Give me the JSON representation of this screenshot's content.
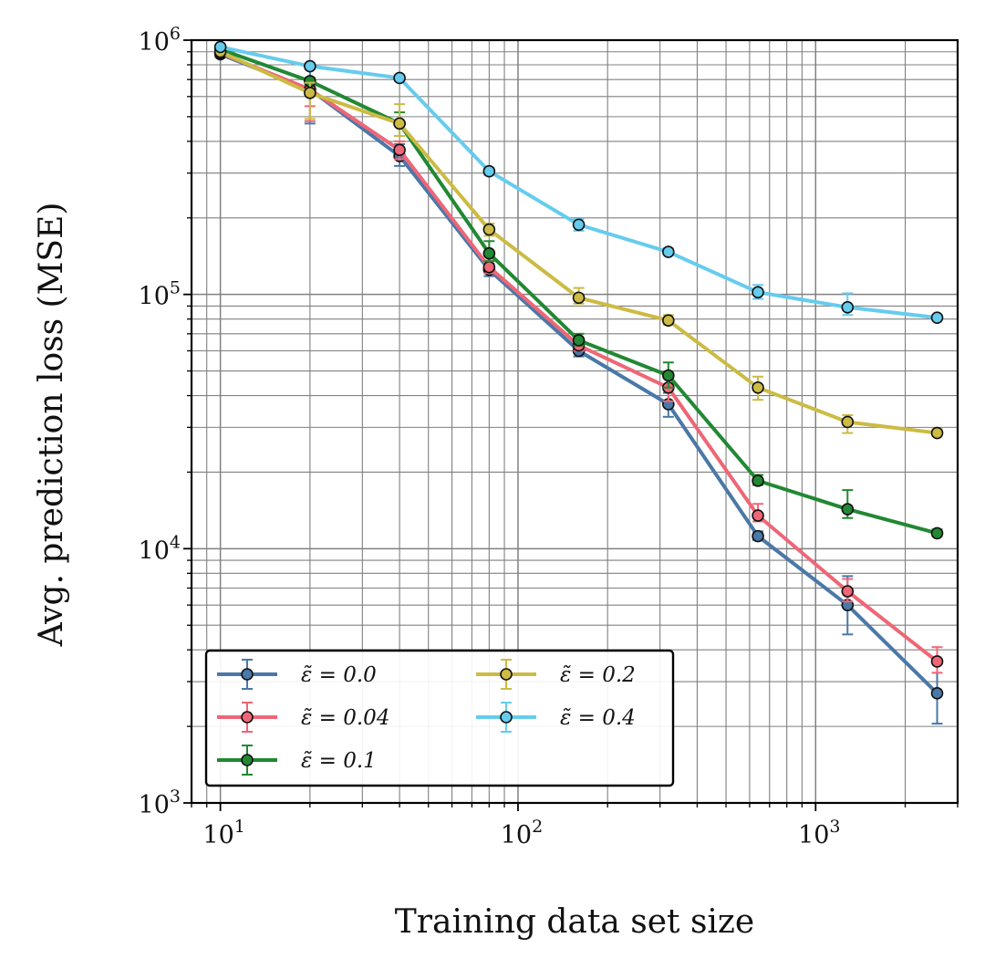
{
  "chart_data": {
    "type": "line",
    "title": "",
    "xlabel": "Training data set size",
    "ylabel": "Avg. prediction loss (MSE)",
    "xscale": "log",
    "yscale": "log",
    "xlim": [
      8,
      3000
    ],
    "ylim": [
      1000,
      1000000
    ],
    "grid": true,
    "legend_position": "bottom-left",
    "x_ticks": [
      {
        "value": 10,
        "base": "10",
        "exp": "1"
      },
      {
        "value": 100,
        "base": "10",
        "exp": "2"
      },
      {
        "value": 1000,
        "base": "10",
        "exp": "3"
      }
    ],
    "y_ticks": [
      {
        "value": 1000,
        "base": "10",
        "exp": "3"
      },
      {
        "value": 10000,
        "base": "10",
        "exp": "4"
      },
      {
        "value": 100000,
        "base": "10",
        "exp": "5"
      },
      {
        "value": 1000000,
        "base": "10",
        "exp": "6"
      }
    ],
    "x": [
      10,
      20,
      40,
      80,
      160,
      320,
      640,
      1280,
      2560
    ],
    "series": [
      {
        "name": "ε̃ = 0.0",
        "color": "#4a78a8",
        "values": [
          880000,
          640000,
          350000,
          125000,
          60000,
          37000,
          11200,
          6000,
          2700
        ],
        "error_low": [
          860000,
          470000,
          320000,
          118000,
          57000,
          33000,
          10800,
          4600,
          2050
        ],
        "error_high": [
          910000,
          800000,
          390000,
          132000,
          64000,
          41000,
          11700,
          7800,
          3600
        ]
      },
      {
        "name": "ε̃ = 0.04",
        "color": "#ee6677",
        "values": [
          890000,
          640000,
          370000,
          128000,
          63000,
          43000,
          13500,
          6800,
          3600
        ],
        "error_low": [
          870000,
          480000,
          340000,
          121000,
          60000,
          38000,
          12800,
          6200,
          3250
        ],
        "error_high": [
          920000,
          550000,
          400000,
          136000,
          66000,
          47000,
          15000,
          7600,
          4100
        ]
      },
      {
        "name": "ε̃ = 0.1",
        "color": "#228833",
        "values": [
          920000,
          690000,
          470000,
          145000,
          66000,
          48000,
          18500,
          14300,
          11500
        ],
        "error_low": [
          900000,
          670000,
          420000,
          135000,
          63000,
          43000,
          17800,
          13200,
          11200
        ],
        "error_high": [
          940000,
          710000,
          520000,
          162000,
          70000,
          54000,
          19500,
          17000,
          11900
        ]
      },
      {
        "name": "ε̃ = 0.2",
        "color": "#ccbb44",
        "values": [
          900000,
          620000,
          470000,
          180000,
          97000,
          79000,
          43000,
          31500,
          28500
        ],
        "error_low": [
          880000,
          490000,
          420000,
          170000,
          92000,
          76000,
          38500,
          28500,
          27800
        ],
        "error_high": [
          930000,
          680000,
          560000,
          190000,
          106000,
          83000,
          47500,
          33500,
          29500
        ]
      },
      {
        "name": "ε̃ = 0.4",
        "color": "#66ccee",
        "values": [
          940000,
          790000,
          710000,
          305000,
          188000,
          147000,
          102000,
          89000,
          81000
        ],
        "error_low": [
          920000,
          770000,
          690000,
          295000,
          178000,
          143000,
          96000,
          83000,
          79000
        ],
        "error_high": [
          960000,
          810000,
          730000,
          315000,
          198000,
          152000,
          109000,
          101000,
          83000
        ]
      }
    ]
  }
}
